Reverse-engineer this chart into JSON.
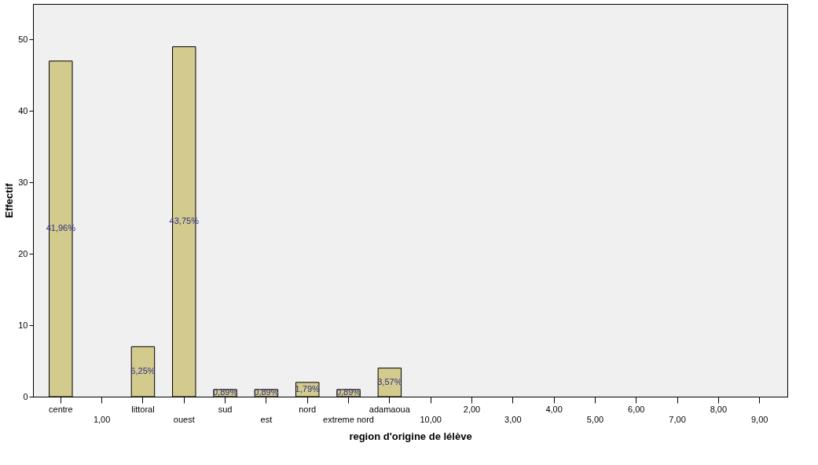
{
  "chart_data": {
    "type": "bar",
    "xlabel": "region d'origine de lélève",
    "ylabel": "Effectif",
    "categories": [
      "centre",
      "1,00",
      "littoral",
      "ouest",
      "sud",
      "est",
      "nord",
      "extreme nord",
      "adamaoua",
      "10,00",
      "2,00",
      "3,00",
      "4,00",
      "5,00",
      "6,00",
      "7,00",
      "8,00",
      "9,00"
    ],
    "values": [
      47,
      null,
      7,
      49,
      1,
      1,
      2,
      1,
      4,
      null,
      null,
      null,
      null,
      null,
      null,
      null,
      null,
      null
    ],
    "annotations": [
      "41,96%",
      "6,25%",
      "43,75%",
      "0,89%",
      "0,89%",
      "1,79%",
      "0,89%",
      "3,57%"
    ],
    "color": "#d3cb8e",
    "ylim": [
      0,
      55
    ],
    "yticks": [
      0,
      10,
      20,
      30,
      40,
      50
    ],
    "grid": false
  }
}
